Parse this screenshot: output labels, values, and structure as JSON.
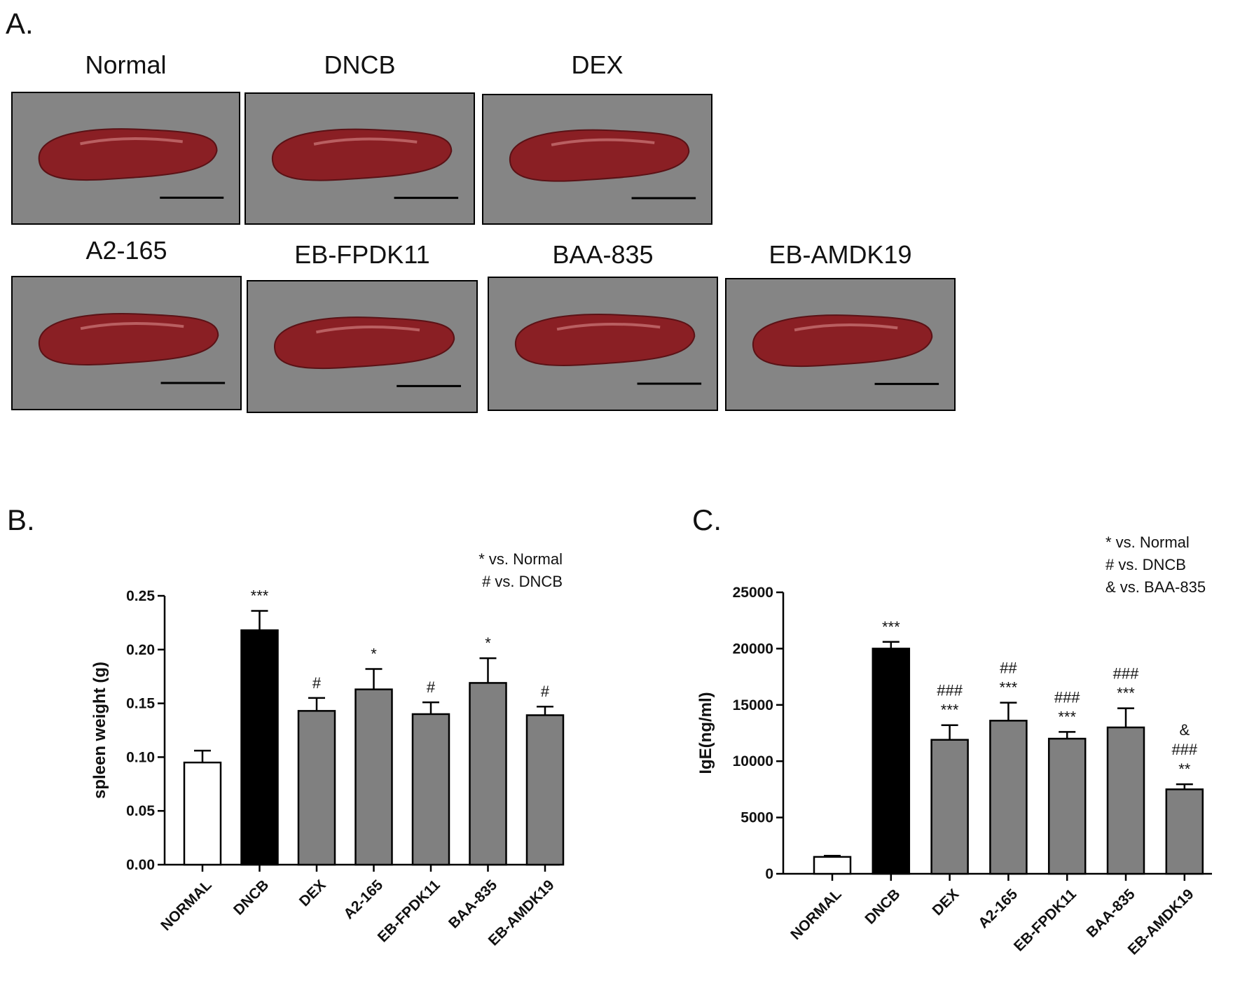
{
  "photo_panel": {
    "panel_label": "A.",
    "samples": [
      "Normal",
      "DNCB",
      "DEX",
      "A2-165",
      "EB-FPDK11",
      "BAA-835",
      "EB-AMDK19"
    ]
  },
  "chart_data": [
    {
      "type": "bar",
      "panel_label": "B.",
      "ylabel": "spleen weight (g)",
      "categories": [
        "NORMAL",
        "DNCB",
        "DEX",
        "A2-165",
        "EB-FPDK11",
        "BAA-835",
        "EB-AMDK19"
      ],
      "values": [
        0.095,
        0.218,
        0.143,
        0.163,
        0.14,
        0.169,
        0.139
      ],
      "errors": [
        0.011,
        0.018,
        0.012,
        0.019,
        0.011,
        0.023,
        0.008
      ],
      "colors": [
        "#ffffff",
        "#000000",
        "#808080",
        "#808080",
        "#808080",
        "#808080",
        "#808080"
      ],
      "annotations": [
        null,
        [
          "***"
        ],
        [
          "#"
        ],
        [
          "*"
        ],
        [
          "#"
        ],
        [
          "*"
        ],
        [
          "#"
        ]
      ],
      "notes": [
        "* vs. Normal",
        "# vs. DNCB"
      ],
      "ylim": [
        0,
        0.25
      ],
      "yticks": [
        {
          "value": 0,
          "label": "0.00"
        },
        {
          "value": 0.05,
          "label": "0.05"
        },
        {
          "value": 0.1,
          "label": "0.10"
        },
        {
          "value": 0.15,
          "label": "0.15"
        },
        {
          "value": 0.2,
          "label": "0.20"
        },
        {
          "value": 0.25,
          "label": "0.25"
        }
      ]
    },
    {
      "type": "bar",
      "panel_label": "C.",
      "ylabel": "IgE(ng/ml)",
      "categories": [
        "NORMAL",
        "DNCB",
        "DEX",
        "A2-165",
        "EB-FPDK11",
        "BAA-835",
        "EB-AMDK19"
      ],
      "values": [
        1500,
        20000,
        11900,
        13600,
        12000,
        13000,
        7500
      ],
      "errors": [
        100,
        600,
        1300,
        1600,
        600,
        1700,
        450
      ],
      "colors": [
        "#ffffff",
        "#000000",
        "#808080",
        "#808080",
        "#808080",
        "#808080",
        "#808080"
      ],
      "annotations": [
        null,
        [
          "***"
        ],
        [
          "###",
          "***"
        ],
        [
          "##",
          "***"
        ],
        [
          "###",
          "***"
        ],
        [
          "###",
          "***"
        ],
        [
          "&",
          "###",
          "**"
        ]
      ],
      "notes": [
        "* vs. Normal",
        "# vs. DNCB",
        "& vs. BAA-835"
      ],
      "ylim": [
        0,
        25000
      ],
      "yticks": [
        0,
        5000,
        10000,
        15000,
        20000,
        25000
      ]
    }
  ]
}
